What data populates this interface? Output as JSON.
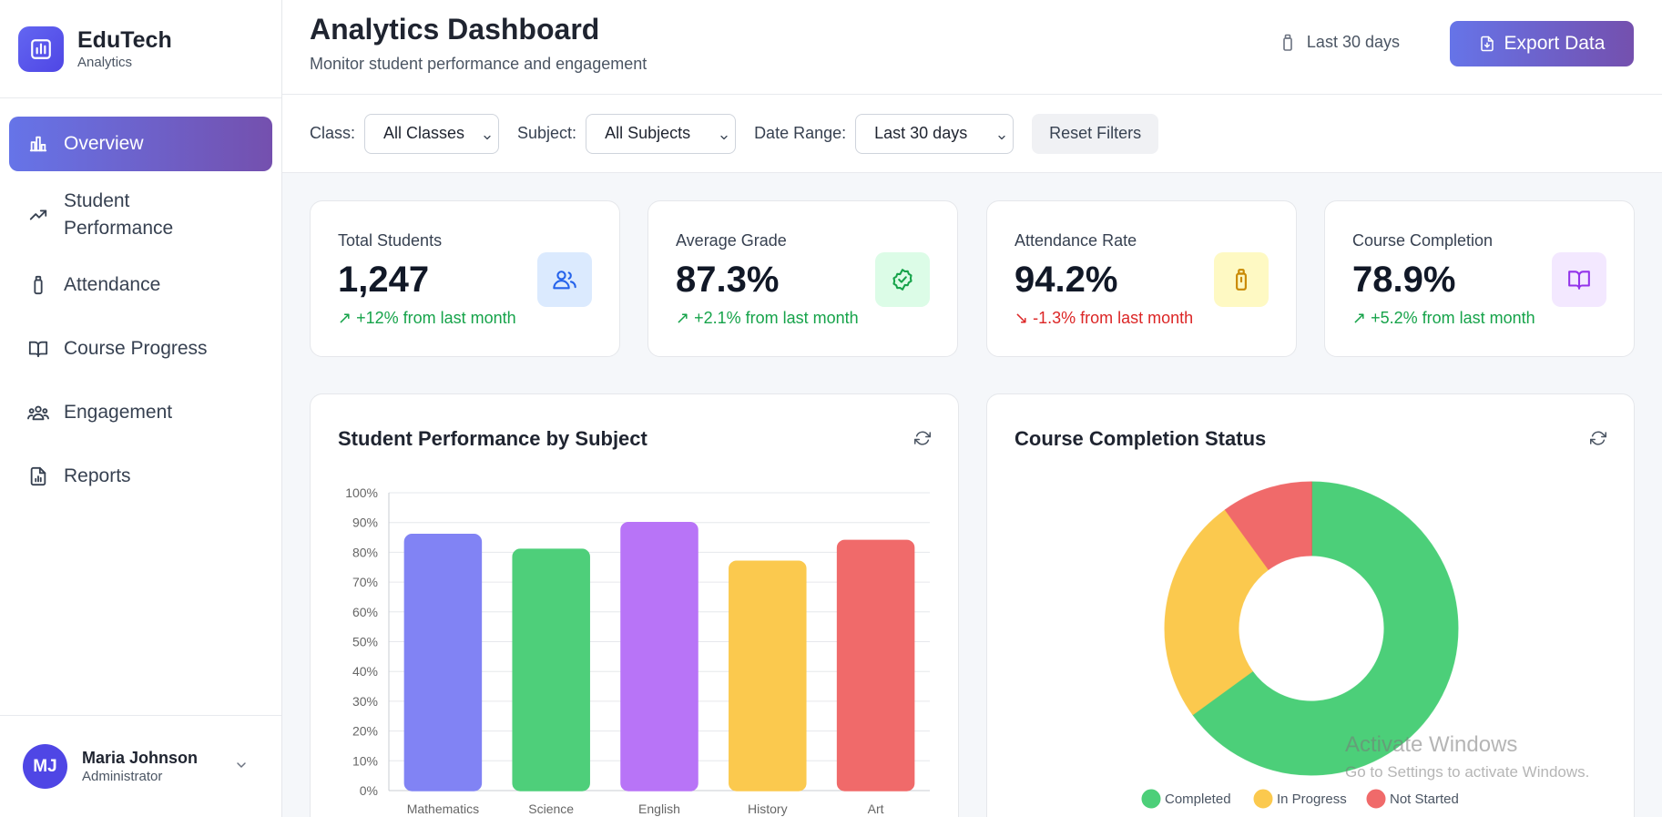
{
  "brand": {
    "name": "EduTech",
    "subtitle": "Analytics"
  },
  "nav": [
    {
      "label": "Overview",
      "icon": "bar-chart-icon",
      "active": true
    },
    {
      "label": "Student Performance",
      "icon": "trending-up-icon",
      "active": false
    },
    {
      "label": "Attendance",
      "icon": "clipboard-icon",
      "active": false
    },
    {
      "label": "Course Progress",
      "icon": "book-open-icon",
      "active": false
    },
    {
      "label": "Engagement",
      "icon": "users-icon",
      "active": false
    },
    {
      "label": "Reports",
      "icon": "file-chart-icon",
      "active": false
    }
  ],
  "user": {
    "initials": "MJ",
    "name": "Maria Johnson",
    "role": "Administrator"
  },
  "header": {
    "title": "Analytics Dashboard",
    "subtitle": "Monitor student performance and engagement",
    "date_range": "Last 30 days",
    "export_label": "Export Data"
  },
  "filters": {
    "class_label": "Class:",
    "class_value": "All Classes",
    "subject_label": "Subject:",
    "subject_value": "All Subjects",
    "date_label": "Date Range:",
    "date_value": "Last 30 days",
    "reset_label": "Reset Filters"
  },
  "stats": [
    {
      "label": "Total Students",
      "value": "1,247",
      "change": "↗ +12% from last month",
      "trend": "up",
      "icon": "users-icon",
      "icon_bg": "#dbeafe",
      "icon_color": "#2563eb"
    },
    {
      "label": "Average Grade",
      "value": "87.3%",
      "change": "↗ +2.1% from last month",
      "trend": "up",
      "icon": "badge-check-icon",
      "icon_bg": "#dcfce7",
      "icon_color": "#16a34a"
    },
    {
      "label": "Attendance Rate",
      "value": "94.2%",
      "change": "↘ -1.3% from last month",
      "trend": "down",
      "icon": "clipboard-icon",
      "icon_bg": "#fef9c3",
      "icon_color": "#ca8a04"
    },
    {
      "label": "Course Completion",
      "value": "78.9%",
      "change": "↗ +5.2% from last month",
      "trend": "up",
      "icon": "book-open-icon",
      "icon_bg": "#f3e8ff",
      "icon_color": "#9333ea"
    }
  ],
  "panels": {
    "performance_title": "Student Performance by Subject",
    "completion_title": "Course Completion Status"
  },
  "chart_data": [
    {
      "type": "bar",
      "title": "Student Performance by Subject",
      "categories": [
        "Mathematics",
        "Science",
        "English",
        "History",
        "Art"
      ],
      "values": [
        86,
        81,
        90,
        77,
        84
      ],
      "colors": [
        "#8183f4",
        "#4ecf7a",
        "#b874f7",
        "#fbc94e",
        "#f06a6a"
      ],
      "y_ticks": [
        "0%",
        "10%",
        "20%",
        "30%",
        "40%",
        "50%",
        "60%",
        "70%",
        "80%",
        "90%",
        "100%"
      ],
      "ylim": [
        0,
        100
      ],
      "grid": true
    },
    {
      "type": "pie",
      "title": "Course Completion Status",
      "donut": true,
      "labels": [
        "Completed",
        "In Progress",
        "Not Started"
      ],
      "values": [
        65,
        25,
        10
      ],
      "colors": [
        "#4ccf79",
        "#fbc94e",
        "#f06a6a"
      ],
      "legend_position": "bottom"
    }
  ],
  "watermark": {
    "line1": "Activate Windows",
    "line2": "Go to Settings to activate Windows."
  }
}
